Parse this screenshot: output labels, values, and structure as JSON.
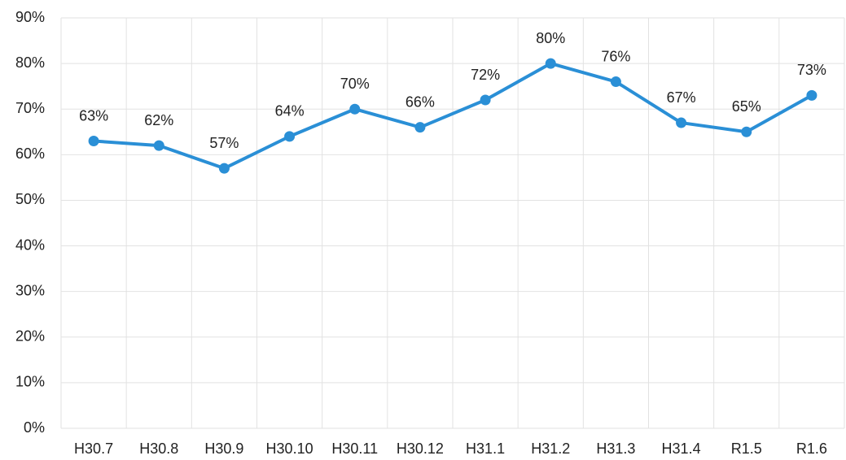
{
  "chart_data": {
    "type": "line",
    "categories": [
      "H30.7",
      "H30.8",
      "H30.9",
      "H30.10",
      "H30.11",
      "H30.12",
      "H31.1",
      "H31.2",
      "H31.3",
      "H31.4",
      "R1.5",
      "R1.6"
    ],
    "series": [
      {
        "color": "#2a8fd6",
        "values": [
          63,
          62,
          57,
          64,
          70,
          66,
          72,
          80,
          76,
          67,
          65,
          73
        ],
        "value_labels": [
          "63%",
          "62%",
          "57%",
          "64%",
          "70%",
          "66%",
          "72%",
          "80%",
          "76%",
          "67%",
          "65%",
          "73%"
        ]
      }
    ],
    "ylim": [
      0,
      90
    ],
    "yticks": [
      {
        "value": 0,
        "label": "0%"
      },
      {
        "value": 10,
        "label": "10%"
      },
      {
        "value": 20,
        "label": "20%"
      },
      {
        "value": 30,
        "label": "30%"
      },
      {
        "value": 40,
        "label": "40%"
      },
      {
        "value": 50,
        "label": "50%"
      },
      {
        "value": 60,
        "label": "60%"
      },
      {
        "value": 70,
        "label": "70%"
      },
      {
        "value": 80,
        "label": "80%"
      },
      {
        "value": 90,
        "label": "90%"
      }
    ],
    "grid": true
  }
}
